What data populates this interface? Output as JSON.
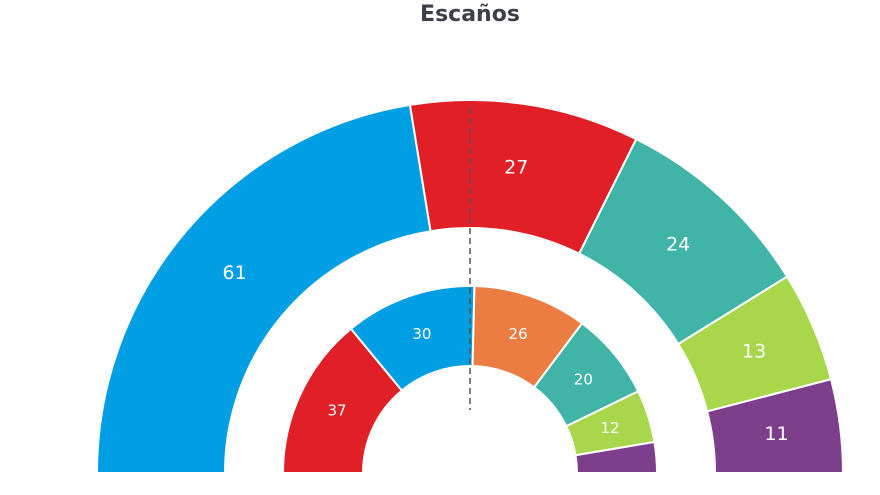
{
  "chart_data": [
    {
      "type": "pie",
      "title": "Escaños",
      "ring": "outer",
      "slices": [
        {
          "value": 61,
          "label": "61",
          "color": "#009fe3"
        },
        {
          "value": 27,
          "label": "27",
          "color": "#e11f26"
        },
        {
          "value": 24,
          "label": "24",
          "color": "#40b4a6"
        },
        {
          "value": 13,
          "label": "13",
          "color": "#a8d74c"
        },
        {
          "value": 11,
          "label": "11",
          "color": "#7d3f8c"
        }
      ]
    },
    {
      "type": "pie",
      "ring": "inner",
      "slices": [
        {
          "value": 37,
          "label": "37",
          "color": "#e11f26"
        },
        {
          "value": 30,
          "label": "30",
          "color": "#009fe3"
        },
        {
          "value": 26,
          "label": "26",
          "color": "#ec7d42"
        },
        {
          "value": 20,
          "label": "20",
          "color": "#40b4a6"
        },
        {
          "value": 12,
          "label": "12",
          "color": "#a8d74c"
        },
        {
          "value": 7,
          "label": "",
          "color": "#7d3f8c"
        }
      ]
    }
  ]
}
